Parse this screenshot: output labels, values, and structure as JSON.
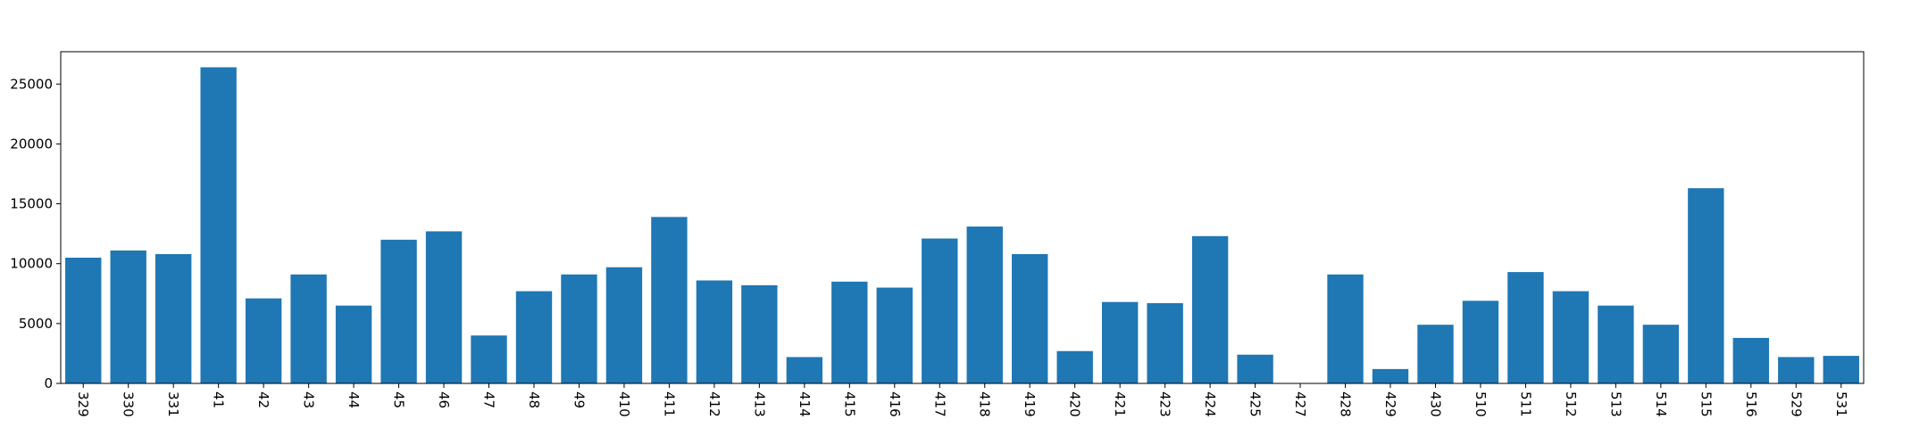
{
  "chart_data": {
    "type": "bar",
    "title": "",
    "xlabel": "",
    "ylabel": "",
    "color": "#1f77b4",
    "categories": [
      "329",
      "330",
      "331",
      "41",
      "42",
      "43",
      "44",
      "45",
      "46",
      "47",
      "48",
      "49",
      "410",
      "411",
      "412",
      "413",
      "414",
      "415",
      "416",
      "417",
      "418",
      "419",
      "420",
      "421",
      "423",
      "424",
      "425",
      "427",
      "428",
      "429",
      "430",
      "510",
      "511",
      "512",
      "513",
      "514",
      "515",
      "516",
      "529",
      "531"
    ],
    "values": [
      10500,
      11100,
      10800,
      26400,
      7100,
      9100,
      6500,
      12000,
      12700,
      4000,
      7700,
      9100,
      9700,
      13900,
      8600,
      8200,
      2200,
      8500,
      8000,
      12100,
      13100,
      10800,
      2700,
      6800,
      6700,
      12300,
      2400,
      0,
      9100,
      1200,
      4900,
      6900,
      9300,
      7700,
      6500,
      4900,
      16300,
      3800,
      2200,
      2300
    ],
    "yticks": [
      0,
      5000,
      10000,
      15000,
      20000,
      25000
    ],
    "ylim": [
      0,
      27700
    ],
    "grid": false,
    "legend": "none"
  }
}
